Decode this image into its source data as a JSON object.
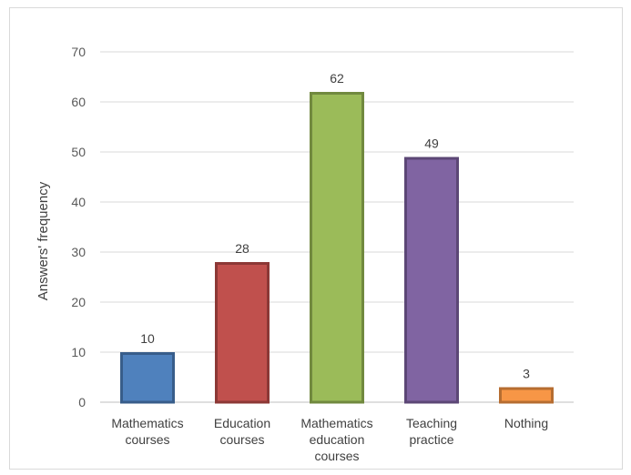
{
  "chart_data": {
    "type": "bar",
    "title": "",
    "xlabel": "",
    "ylabel": "Answers' frequency",
    "ylim": [
      0,
      70
    ],
    "yticks": [
      0,
      10,
      20,
      30,
      40,
      50,
      60,
      70
    ],
    "grid": true,
    "legend": "none",
    "categories": [
      [
        "Mathematics",
        "courses"
      ],
      [
        "Education",
        "courses"
      ],
      [
        "Mathematics",
        "education",
        "courses"
      ],
      [
        "Teaching",
        "practice"
      ],
      [
        "Nothing"
      ]
    ],
    "values": [
      10,
      28,
      62,
      49,
      3
    ],
    "colors": [
      {
        "fill": "#4f81bd",
        "stroke": "#385d8a"
      },
      {
        "fill": "#c0504d",
        "stroke": "#8c3836"
      },
      {
        "fill": "#9bbb59",
        "stroke": "#71893f"
      },
      {
        "fill": "#8064a2",
        "stroke": "#5c4776"
      },
      {
        "fill": "#f79646",
        "stroke": "#b66d31"
      }
    ],
    "gridline_color": "#d9d9d9",
    "axis_color": "#bfbfbf"
  }
}
